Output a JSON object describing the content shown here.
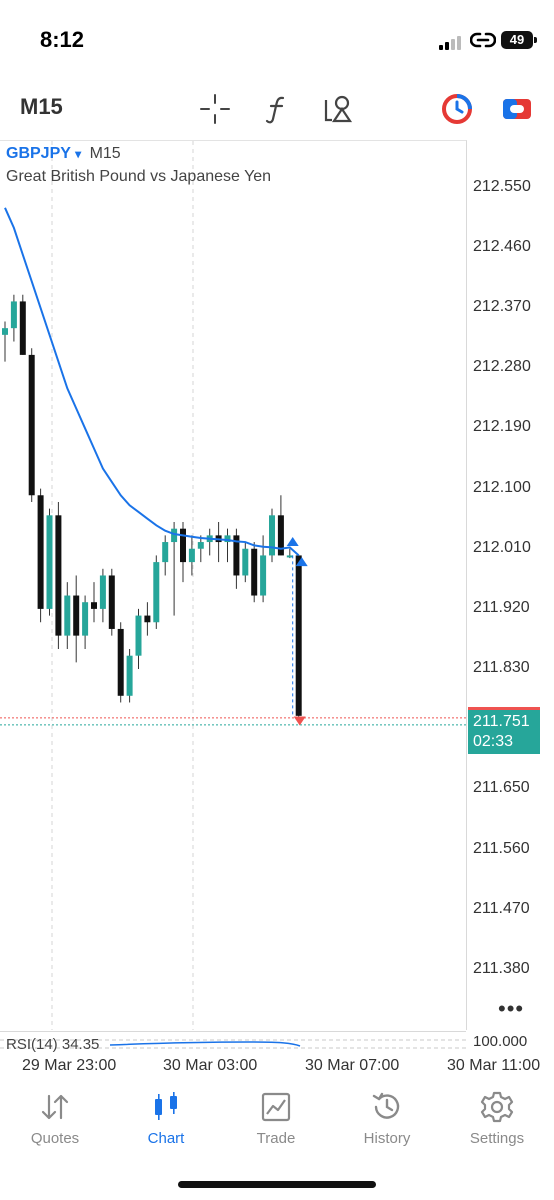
{
  "status_bar": {
    "time": "8:12",
    "battery": "49"
  },
  "toolbar": {
    "timeframe": "M15"
  },
  "chart": {
    "symbol": "GBPJPY",
    "symbol_arrow": "▾",
    "timeframe": "M15",
    "description": "Great British Pound vs Japanese Yen",
    "price_labels": [
      "212.550",
      "212.460",
      "212.370",
      "212.280",
      "212.190",
      "212.100",
      "212.010",
      "211.920",
      "211.830",
      "211.650",
      "211.560",
      "211.470",
      "211.380"
    ],
    "bid_price": "211.751",
    "bar_countdown": "02:33",
    "more": "•••",
    "rsi_label": "RSI(14) 34.35",
    "rsi_axis": "100.000",
    "time_labels": [
      "29 Mar 23:00",
      "30 Mar 03:00",
      "30 Mar 07:00",
      "30 Mar 11:00"
    ],
    "colors": {
      "bull": "#26a69a",
      "bear": "#111111",
      "ma": "#1a73e8",
      "ask": "#ef5350",
      "accent": "#1a73e8"
    }
  },
  "chart_data": {
    "type": "candlestick",
    "ylim": [
      211.29,
      212.62
    ],
    "y_ticks": [
      212.55,
      212.46,
      212.37,
      212.28,
      212.19,
      212.1,
      212.01,
      211.92,
      211.83,
      211.65,
      211.56,
      211.47,
      211.38
    ],
    "candles": [
      {
        "o": 212.33,
        "h": 212.35,
        "l": 212.29,
        "c": 212.34
      },
      {
        "o": 212.34,
        "h": 212.39,
        "l": 212.32,
        "c": 212.38
      },
      {
        "o": 212.38,
        "h": 212.39,
        "l": 212.3,
        "c": 212.3
      },
      {
        "o": 212.3,
        "h": 212.31,
        "l": 212.08,
        "c": 212.09
      },
      {
        "o": 212.09,
        "h": 212.1,
        "l": 211.9,
        "c": 211.92
      },
      {
        "o": 211.92,
        "h": 212.07,
        "l": 211.91,
        "c": 212.06
      },
      {
        "o": 212.06,
        "h": 212.08,
        "l": 211.86,
        "c": 211.88
      },
      {
        "o": 211.88,
        "h": 211.96,
        "l": 211.86,
        "c": 211.94
      },
      {
        "o": 211.94,
        "h": 211.97,
        "l": 211.84,
        "c": 211.88
      },
      {
        "o": 211.88,
        "h": 211.94,
        "l": 211.86,
        "c": 211.93
      },
      {
        "o": 211.93,
        "h": 211.96,
        "l": 211.9,
        "c": 211.92
      },
      {
        "o": 211.92,
        "h": 211.98,
        "l": 211.9,
        "c": 211.97
      },
      {
        "o": 211.97,
        "h": 211.98,
        "l": 211.88,
        "c": 211.89
      },
      {
        "o": 211.89,
        "h": 211.9,
        "l": 211.78,
        "c": 211.79
      },
      {
        "o": 211.79,
        "h": 211.86,
        "l": 211.78,
        "c": 211.85
      },
      {
        "o": 211.85,
        "h": 211.92,
        "l": 211.83,
        "c": 211.91
      },
      {
        "o": 211.91,
        "h": 211.93,
        "l": 211.88,
        "c": 211.9
      },
      {
        "o": 211.9,
        "h": 212.0,
        "l": 211.89,
        "c": 211.99
      },
      {
        "o": 211.99,
        "h": 212.03,
        "l": 211.97,
        "c": 212.02
      },
      {
        "o": 212.02,
        "h": 212.05,
        "l": 211.91,
        "c": 212.04
      },
      {
        "o": 212.04,
        "h": 212.05,
        "l": 211.96,
        "c": 211.99
      },
      {
        "o": 211.99,
        "h": 212.03,
        "l": 211.97,
        "c": 212.01
      },
      {
        "o": 212.01,
        "h": 212.03,
        "l": 211.99,
        "c": 212.02
      },
      {
        "o": 212.02,
        "h": 212.04,
        "l": 212.0,
        "c": 212.03
      },
      {
        "o": 212.03,
        "h": 212.05,
        "l": 211.99,
        "c": 212.02
      },
      {
        "o": 212.02,
        "h": 212.04,
        "l": 211.99,
        "c": 212.03
      },
      {
        "o": 212.03,
        "h": 212.04,
        "l": 211.95,
        "c": 211.97
      },
      {
        "o": 211.97,
        "h": 212.02,
        "l": 211.96,
        "c": 212.01
      },
      {
        "o": 212.01,
        "h": 212.02,
        "l": 211.93,
        "c": 211.94
      },
      {
        "o": 211.94,
        "h": 212.03,
        "l": 211.93,
        "c": 212.0
      },
      {
        "o": 212.0,
        "h": 212.07,
        "l": 211.99,
        "c": 212.06
      },
      {
        "o": 212.06,
        "h": 212.09,
        "l": 212.0,
        "c": 212.0
      },
      {
        "o": 212.0,
        "h": 212.01,
        "l": 211.996,
        "c": 212.0
      },
      {
        "o": 212.0,
        "h": 212.0,
        "l": 211.75,
        "c": 211.76
      }
    ],
    "moving_average": [
      212.52,
      212.49,
      212.45,
      212.41,
      212.37,
      212.33,
      212.29,
      212.25,
      212.22,
      212.19,
      212.16,
      212.13,
      212.11,
      212.09,
      212.075,
      212.065,
      212.055,
      212.045,
      212.037,
      212.032,
      212.03,
      212.028,
      212.026,
      212.025,
      212.024,
      212.023,
      212.021,
      212.02,
      212.015,
      212.013,
      212.012,
      212.01,
      212.012,
      212.0
    ],
    "last_price": 211.751,
    "rsi": 34.35
  },
  "tabs": [
    {
      "label": "Quotes",
      "icon": "quotes-icon",
      "active": false
    },
    {
      "label": "Chart",
      "icon": "chart-icon",
      "active": true
    },
    {
      "label": "Trade",
      "icon": "trade-icon",
      "active": false
    },
    {
      "label": "History",
      "icon": "history-icon",
      "active": false
    },
    {
      "label": "Settings",
      "icon": "settings-icon",
      "active": false
    }
  ]
}
